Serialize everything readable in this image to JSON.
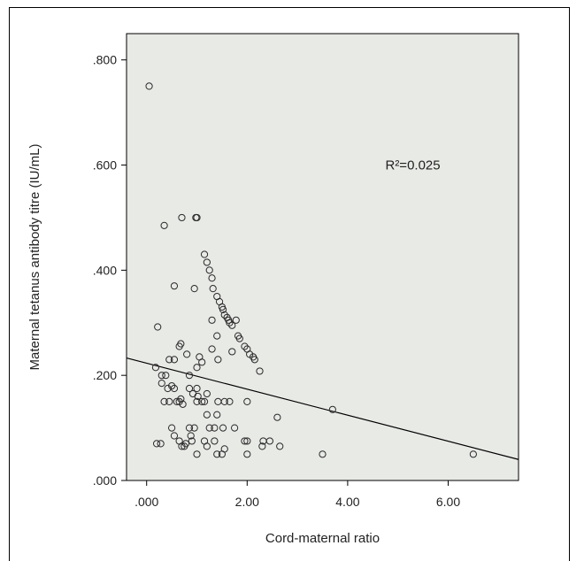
{
  "chart_data": {
    "type": "scatter",
    "title": "",
    "xlabel": "Cord-maternal ratio",
    "ylabel": "Maternal tetanus antibody titre (IU/mL)",
    "xlim": [
      -0.4,
      7.4
    ],
    "ylim": [
      0,
      0.85
    ],
    "x_ticks": [
      0,
      2,
      4,
      6
    ],
    "x_tick_labels": [
      ".000",
      "2.00",
      "4.00",
      "6.00"
    ],
    "y_ticks": [
      0,
      0.2,
      0.4,
      0.6,
      0.8
    ],
    "y_tick_labels": [
      ".000",
      ".200",
      ".400",
      ".600",
      ".800"
    ],
    "grid": false,
    "background": "#e8eae6",
    "annotation": {
      "text": "R²=0.025",
      "x": 4.75,
      "y": 0.6
    },
    "fit_line": {
      "x0": -0.4,
      "y0": 0.233,
      "x1": 7.4,
      "y1": 0.04
    },
    "points": [
      [
        0.05,
        0.75
      ],
      [
        0.35,
        0.485
      ],
      [
        0.7,
        0.5
      ],
      [
        1.0,
        0.5
      ],
      [
        0.98,
        0.5
      ],
      [
        0.22,
        0.292
      ],
      [
        0.55,
        0.37
      ],
      [
        0.95,
        0.365
      ],
      [
        1.15,
        0.43
      ],
      [
        1.2,
        0.415
      ],
      [
        1.25,
        0.4
      ],
      [
        1.3,
        0.385
      ],
      [
        1.32,
        0.365
      ],
      [
        1.4,
        0.35
      ],
      [
        1.45,
        0.34
      ],
      [
        1.5,
        0.33
      ],
      [
        1.52,
        0.325
      ],
      [
        1.55,
        0.315
      ],
      [
        1.6,
        0.31
      ],
      [
        1.63,
        0.305
      ],
      [
        1.65,
        0.3
      ],
      [
        1.7,
        0.295
      ],
      [
        1.78,
        0.305
      ],
      [
        1.3,
        0.305
      ],
      [
        1.82,
        0.275
      ],
      [
        1.85,
        0.27
      ],
      [
        1.95,
        0.255
      ],
      [
        2.0,
        0.25
      ],
      [
        2.05,
        0.24
      ],
      [
        2.12,
        0.235
      ],
      [
        2.15,
        0.23
      ],
      [
        2.25,
        0.208
      ],
      [
        1.4,
        0.275
      ],
      [
        1.3,
        0.25
      ],
      [
        1.7,
        0.245
      ],
      [
        0.65,
        0.255
      ],
      [
        0.68,
        0.26
      ],
      [
        0.8,
        0.24
      ],
      [
        1.05,
        0.235
      ],
      [
        1.1,
        0.225
      ],
      [
        1.0,
        0.215
      ],
      [
        1.42,
        0.23
      ],
      [
        0.45,
        0.23
      ],
      [
        0.55,
        0.23
      ],
      [
        0.18,
        0.215
      ],
      [
        0.3,
        0.2
      ],
      [
        0.38,
        0.2
      ],
      [
        0.3,
        0.185
      ],
      [
        0.42,
        0.175
      ],
      [
        0.5,
        0.18
      ],
      [
        0.55,
        0.175
      ],
      [
        0.35,
        0.15
      ],
      [
        0.45,
        0.15
      ],
      [
        0.65,
        0.15
      ],
      [
        0.68,
        0.155
      ],
      [
        0.85,
        0.2
      ],
      [
        0.85,
        0.175
      ],
      [
        0.92,
        0.165
      ],
      [
        1.0,
        0.175
      ],
      [
        1.02,
        0.16
      ],
      [
        1.0,
        0.15
      ],
      [
        1.1,
        0.15
      ],
      [
        1.15,
        0.15
      ],
      [
        1.2,
        0.165
      ],
      [
        1.42,
        0.15
      ],
      [
        1.55,
        0.15
      ],
      [
        1.65,
        0.15
      ],
      [
        2.0,
        0.15
      ],
      [
        1.2,
        0.125
      ],
      [
        1.4,
        0.125
      ],
      [
        1.25,
        0.1
      ],
      [
        1.35,
        0.1
      ],
      [
        1.52,
        0.1
      ],
      [
        1.75,
        0.1
      ],
      [
        0.5,
        0.1
      ],
      [
        0.55,
        0.085
      ],
      [
        0.65,
        0.075
      ],
      [
        0.7,
        0.065
      ],
      [
        0.75,
        0.065
      ],
      [
        0.85,
        0.1
      ],
      [
        0.88,
        0.085
      ],
      [
        0.9,
        0.075
      ],
      [
        0.95,
        0.1
      ],
      [
        1.0,
        0.05
      ],
      [
        1.15,
        0.075
      ],
      [
        1.2,
        0.065
      ],
      [
        1.35,
        0.075
      ],
      [
        1.4,
        0.05
      ],
      [
        1.5,
        0.05
      ],
      [
        1.55,
        0.06
      ],
      [
        2.0,
        0.075
      ],
      [
        1.95,
        0.075
      ],
      [
        2.0,
        0.05
      ],
      [
        2.3,
        0.065
      ],
      [
        2.32,
        0.075
      ],
      [
        2.45,
        0.075
      ],
      [
        2.65,
        0.065
      ],
      [
        2.6,
        0.12
      ],
      [
        3.5,
        0.05
      ],
      [
        3.7,
        0.135
      ],
      [
        6.5,
        0.05
      ],
      [
        0.2,
        0.07
      ],
      [
        0.28,
        0.07
      ],
      [
        0.78,
        0.07
      ],
      [
        0.6,
        0.15
      ],
      [
        0.72,
        0.145
      ]
    ]
  }
}
